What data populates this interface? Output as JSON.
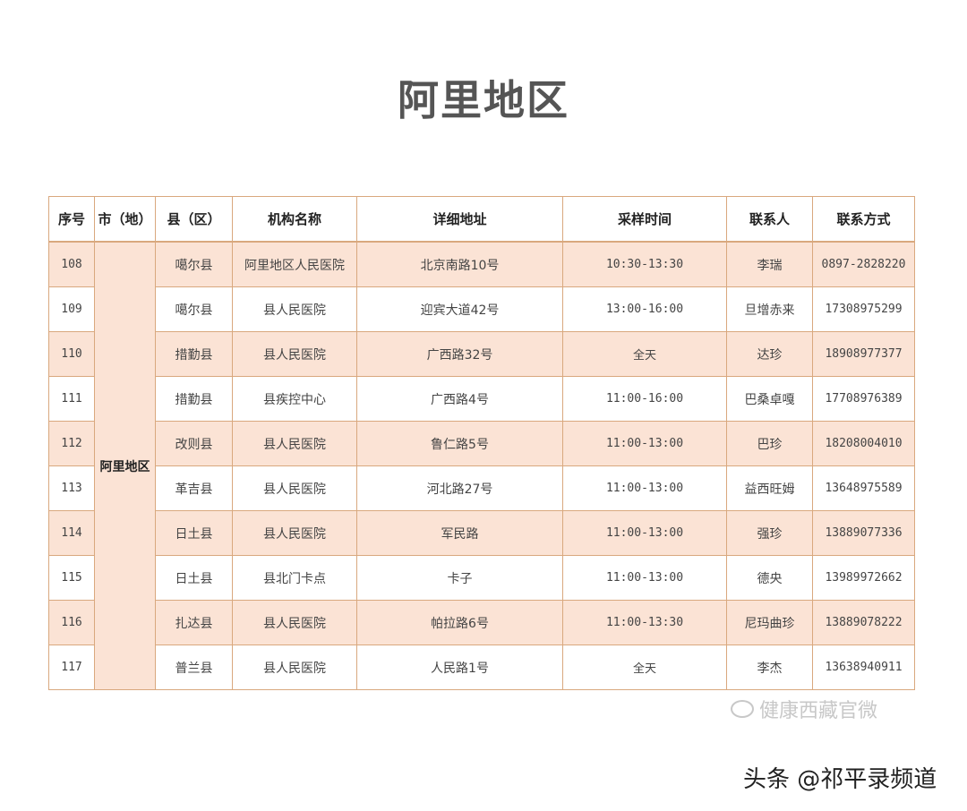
{
  "title": "阿里地区",
  "table": {
    "headers": [
      "序号",
      "市（地）",
      "县（区）",
      "机构名称",
      "详细地址",
      "采样时间",
      "联系人",
      "联系方式"
    ],
    "city": "阿里地区",
    "rows": [
      {
        "no": "108",
        "county": "噶尔县",
        "org": "阿里地区人民医院",
        "addr": "北京南路10号",
        "time": "10:30-13:30",
        "contact": "李瑞",
        "phone": "0897-2828220"
      },
      {
        "no": "109",
        "county": "噶尔县",
        "org": "县人民医院",
        "addr": "迎宾大道42号",
        "time": "13:00-16:00",
        "contact": "旦增赤来",
        "phone": "17308975299"
      },
      {
        "no": "110",
        "county": "措勤县",
        "org": "县人民医院",
        "addr": "广西路32号",
        "time": "全天",
        "contact": "达珍",
        "phone": "18908977377"
      },
      {
        "no": "111",
        "county": "措勤县",
        "org": "县疾控中心",
        "addr": "广西路4号",
        "time": "11:00-16:00",
        "contact": "巴桑卓嘎",
        "phone": "17708976389"
      },
      {
        "no": "112",
        "county": "改则县",
        "org": "县人民医院",
        "addr": "鲁仁路5号",
        "time": "11:00-13:00",
        "contact": "巴珍",
        "phone": "18208004010"
      },
      {
        "no": "113",
        "county": "革吉县",
        "org": "县人民医院",
        "addr": "河北路27号",
        "time": "11:00-13:00",
        "contact": "益西旺姆",
        "phone": "13648975589"
      },
      {
        "no": "114",
        "county": "日土县",
        "org": "县人民医院",
        "addr": "军民路",
        "time": "11:00-13:00",
        "contact": "强珍",
        "phone": "13889077336"
      },
      {
        "no": "115",
        "county": "日土县",
        "org": "县北门卡点",
        "addr": "卡子",
        "time": "11:00-13:00",
        "contact": "德央",
        "phone": "13989972662"
      },
      {
        "no": "116",
        "county": "扎达县",
        "org": "县人民医院",
        "addr": "帕拉路6号",
        "time": "11:00-13:30",
        "contact": "尼玛曲珍",
        "phone": "13889078222"
      },
      {
        "no": "117",
        "county": "普兰县",
        "org": "县人民医院",
        "addr": "人民路1号",
        "time": "全天",
        "contact": "李杰",
        "phone": "13638940911"
      }
    ]
  },
  "watermark": {
    "icon": "wechat-icon",
    "text": "健康西藏官微"
  },
  "credit": "头条 @祁平录频道",
  "colors": {
    "border": "#d9a87e",
    "row_highlight": "#fbe3d5",
    "title": "#555555"
  }
}
